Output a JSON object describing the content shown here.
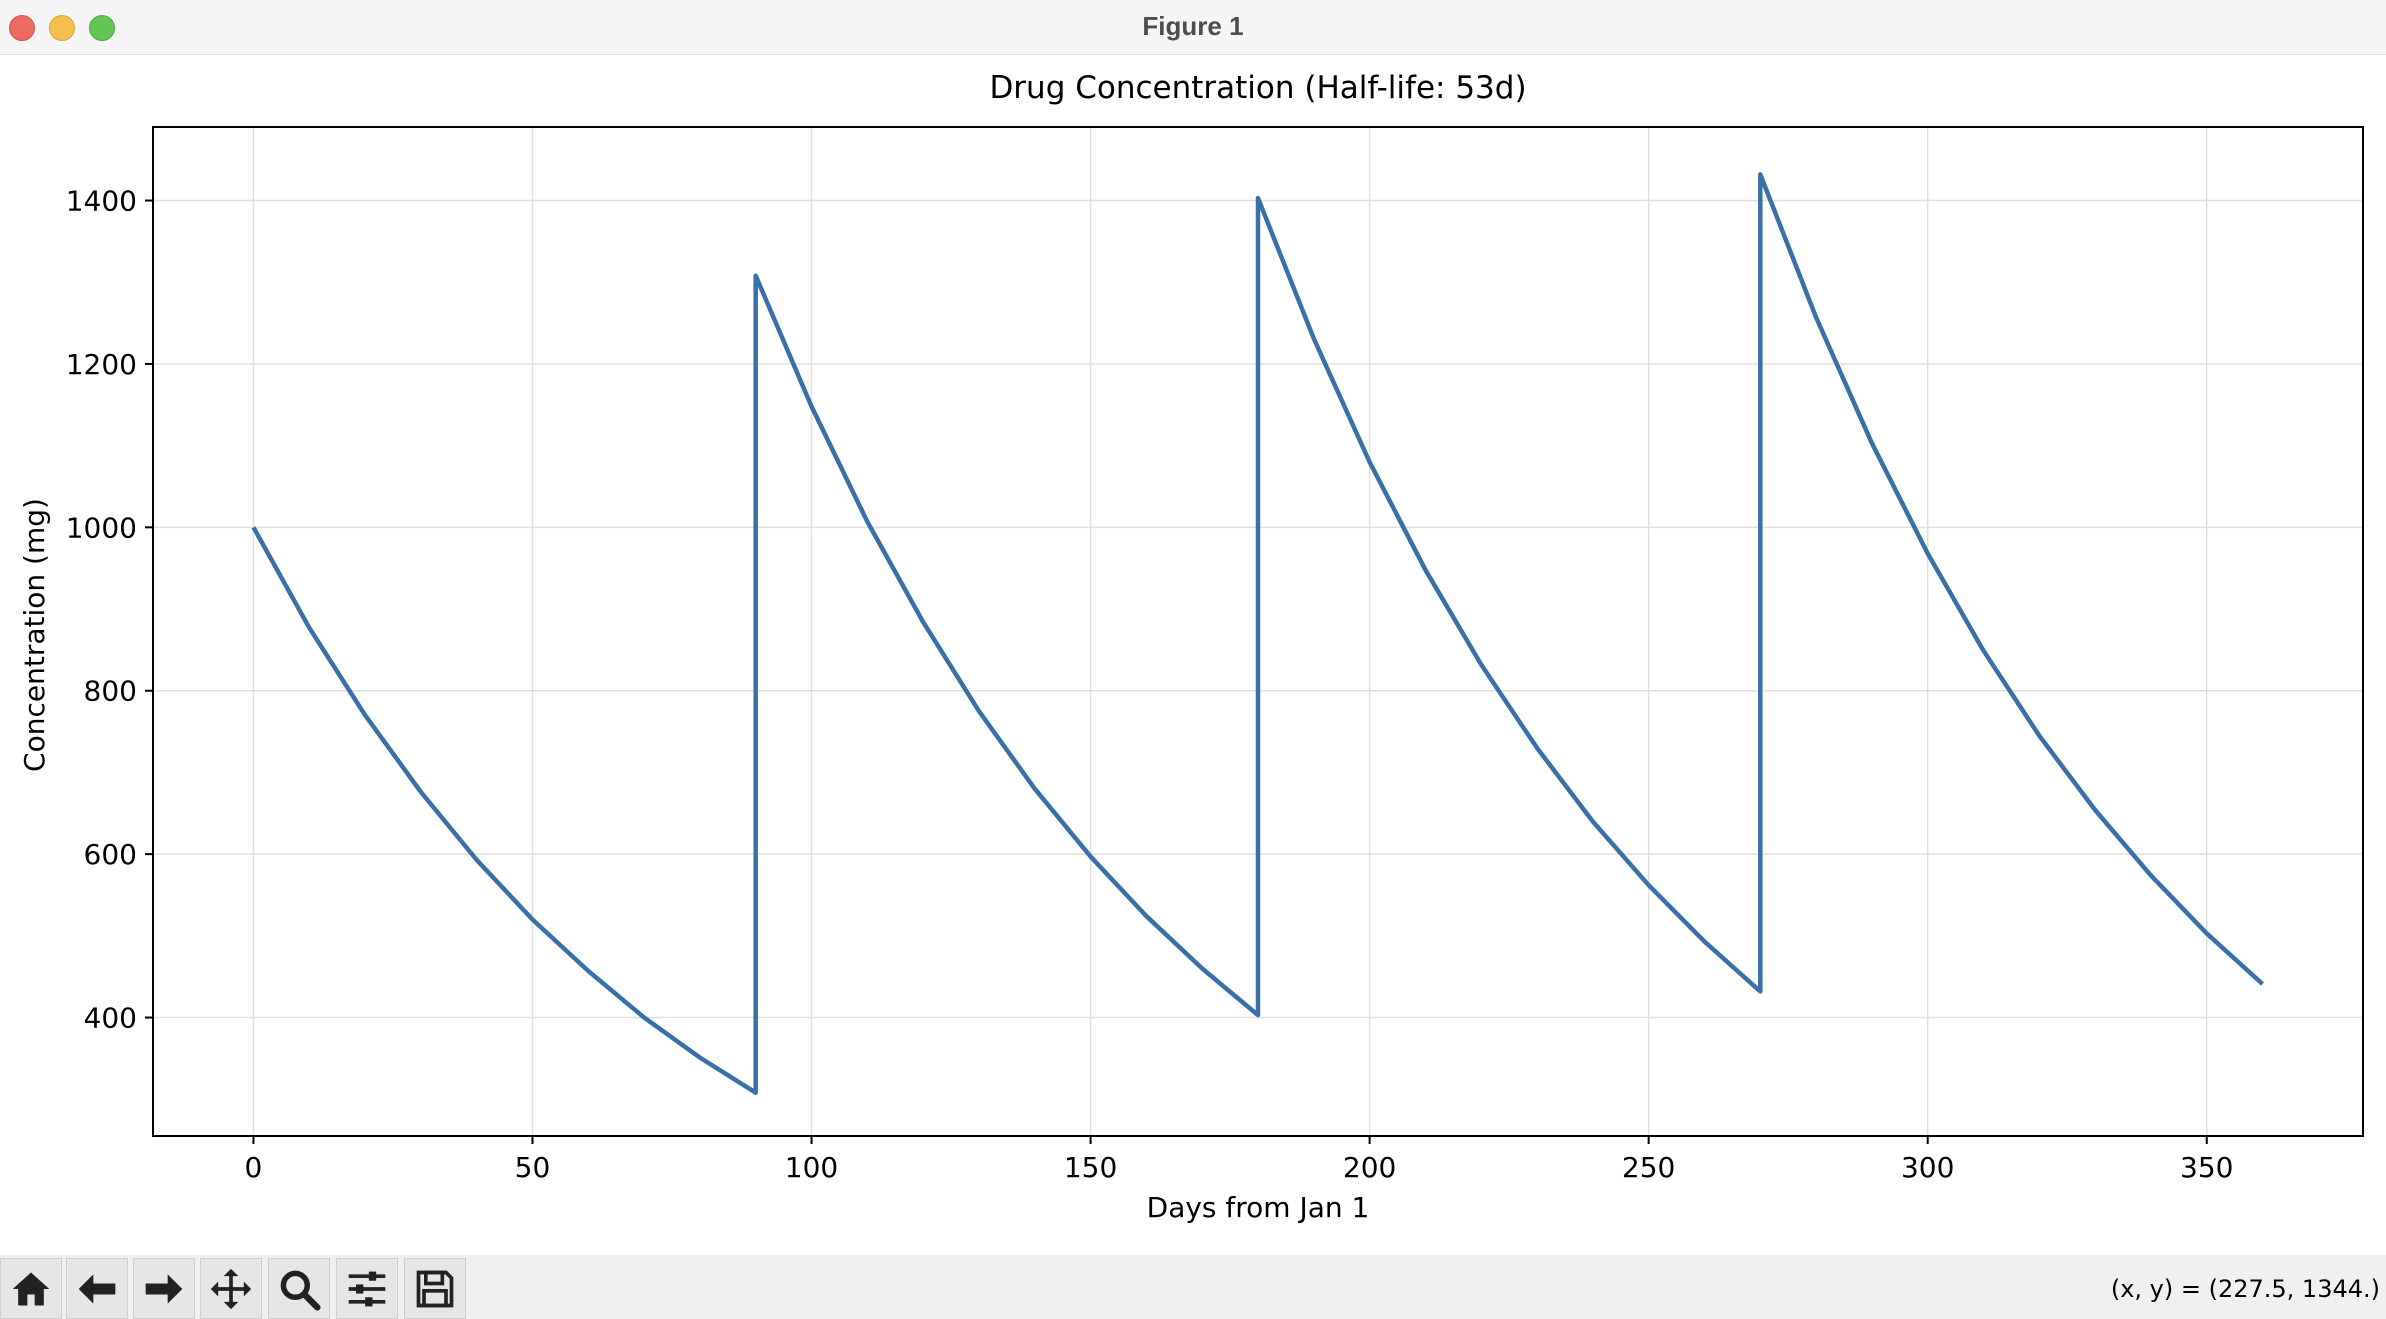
{
  "window": {
    "title": "Figure 1"
  },
  "toolbar": {
    "buttons": [
      {
        "name": "home-icon",
        "label": "Home"
      },
      {
        "name": "back-arrow-icon",
        "label": "Back"
      },
      {
        "name": "forward-arrow-icon",
        "label": "Forward"
      },
      {
        "name": "pan-icon",
        "label": "Pan"
      },
      {
        "name": "zoom-icon",
        "label": "Zoom"
      },
      {
        "name": "configure-subplots-icon",
        "label": "Configure subplots"
      },
      {
        "name": "save-icon",
        "label": "Save"
      }
    ],
    "coords_text": "(x, y) = (227.5, 1344.)"
  },
  "colors": {
    "line": "#3a70a8",
    "grid": "#e0e0e0",
    "axes": "#000000"
  },
  "chart_data": {
    "type": "line",
    "title": "Drug Concentration (Half-life: 53d)",
    "xlabel": "Days from Jan 1",
    "ylabel": "Concentration (mg)",
    "xlim": [
      -18,
      378
    ],
    "ylim": [
      255,
      1490
    ],
    "xticks": [
      0,
      50,
      100,
      150,
      200,
      250,
      300,
      350
    ],
    "yticks": [
      400,
      600,
      800,
      1000,
      1200,
      1400
    ],
    "grid": true,
    "dose_days": [
      0,
      90,
      180,
      270
    ],
    "series": [
      {
        "x": [
          0,
          10,
          20,
          30,
          40,
          50,
          60,
          70,
          80,
          90,
          90,
          100,
          110,
          120,
          130,
          140,
          150,
          160,
          170,
          180,
          180,
          190,
          200,
          210,
          220,
          230,
          240,
          250,
          260,
          270,
          270,
          280,
          290,
          300,
          310,
          320,
          330,
          340,
          350,
          360
        ],
        "y": [
          1000,
          877,
          770,
          676,
          593,
          520,
          457,
          400,
          351,
          308,
          1308,
          1148,
          1007,
          884,
          775,
          680,
          597,
          524,
          460,
          403,
          1403,
          1231,
          1080,
          948,
          832,
          730,
          640,
          562,
          493,
          432,
          1432,
          1257,
          1103,
          968,
          849,
          745,
          654,
          574,
          503,
          441
        ]
      }
    ]
  }
}
